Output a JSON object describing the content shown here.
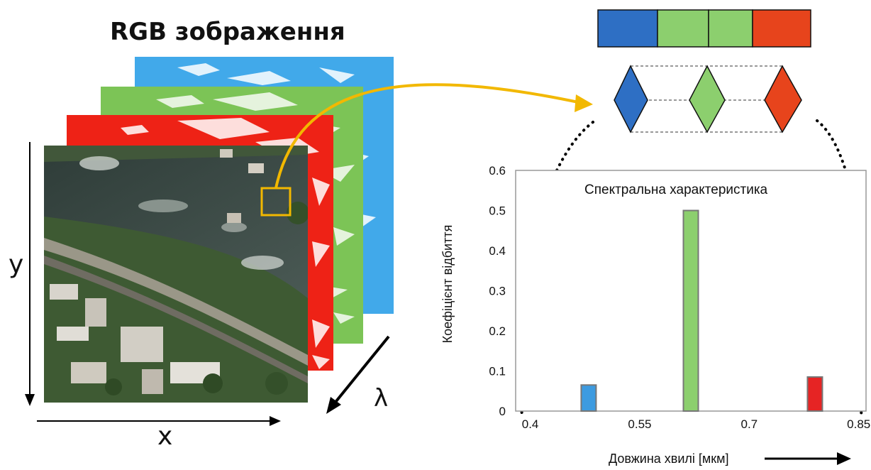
{
  "image_title": "RGB зображення",
  "axes": {
    "y": "y",
    "x": "x",
    "lambda": "λ"
  },
  "colors": {
    "blue": "#2e6fc4",
    "green": "#8ccf6e",
    "red": "#e7441c",
    "cube_blue": "#41a9ea",
    "cube_green": "#7cc456",
    "cube_red": "#ee2216",
    "arrow": "#f2b800",
    "river": "#3b4a44"
  },
  "band_bar": [
    "blue",
    "green",
    "green",
    "red"
  ],
  "diamonds": [
    "blue",
    "green",
    "red"
  ],
  "chart_data": {
    "type": "bar",
    "title": "Спектральна характеристика",
    "xlabel": "Довжина хвилі [мкм]",
    "ylabel": "Коефіцієнт відбиття",
    "xlim": [
      0.38,
      0.86
    ],
    "ylim": [
      0,
      0.6
    ],
    "xticks": [
      "0.4",
      "0.55",
      "0.7",
      "0.85"
    ],
    "yticks": [
      "0",
      "0.1",
      "0.2",
      "0.3",
      "0.4",
      "0.5",
      "0.6"
    ],
    "bars": [
      {
        "x": 0.48,
        "value": 0.065,
        "color": "#3d9be0"
      },
      {
        "x": 0.62,
        "value": 0.5,
        "color": "#8ccf6e"
      },
      {
        "x": 0.79,
        "value": 0.085,
        "color": "#e62424"
      }
    ]
  }
}
